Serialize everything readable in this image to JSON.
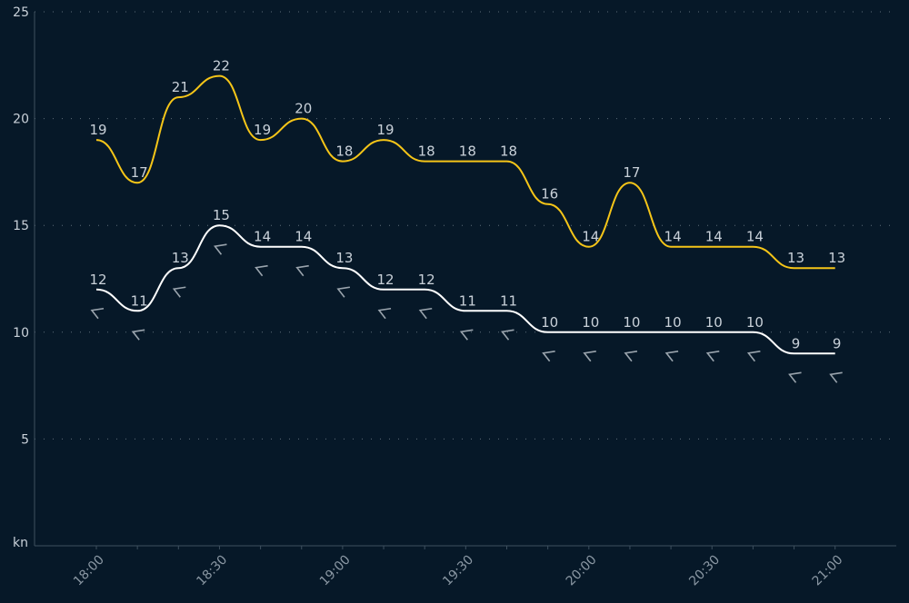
{
  "chart_data": {
    "type": "line",
    "y_unit_label": "kn",
    "ylim": [
      0,
      25
    ],
    "y_ticks": [
      5,
      10,
      15,
      20,
      25
    ],
    "grid": "horizontal dotted",
    "x": [
      "18:00",
      "18:10",
      "18:20",
      "18:30",
      "18:40",
      "18:50",
      "19:00",
      "19:10",
      "19:20",
      "19:30",
      "19:40",
      "19:50",
      "20:00",
      "20:10",
      "20:20",
      "20:30",
      "20:40",
      "20:50",
      "21:00"
    ],
    "x_tick_labels": [
      "18:00",
      "18:30",
      "19:00",
      "19:30",
      "20:00",
      "20:30",
      "21:00"
    ],
    "series": [
      {
        "key": "gust",
        "color": "#f5c518",
        "values": [
          19,
          17,
          21,
          22,
          19,
          20,
          18,
          19,
          18,
          18,
          18,
          16,
          14,
          17,
          14,
          14,
          14,
          13,
          13
        ]
      },
      {
        "key": "wind",
        "color": "#ffffff",
        "values": [
          12,
          11,
          13,
          15,
          14,
          14,
          13,
          12,
          12,
          11,
          11,
          10,
          10,
          10,
          10,
          10,
          10,
          9,
          9
        ]
      }
    ],
    "wind_direction_arrows": "shown below wind series at each point"
  },
  "colors": {
    "background": "#061828",
    "grid": "#5f6e7a",
    "axis": "#3d4f5e",
    "arrow": "#9aa4ad"
  }
}
